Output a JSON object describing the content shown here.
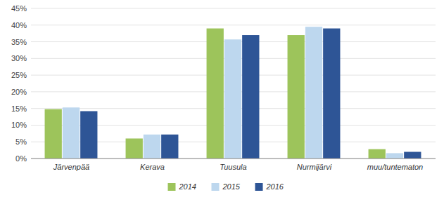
{
  "chart_data": {
    "type": "bar",
    "categories": [
      "Järvenpää",
      "Kerava",
      "Tuusula",
      "Nurmijärvi",
      "muu/tuntematon"
    ],
    "series": [
      {
        "name": "2014",
        "color": "#9DC45B",
        "values": [
          0.148,
          0.06,
          0.39,
          0.37,
          0.028
        ]
      },
      {
        "name": "2015",
        "color": "#BDD7EE",
        "values": [
          0.153,
          0.072,
          0.357,
          0.395,
          0.016
        ]
      },
      {
        "name": "2016",
        "color": "#2E5596",
        "values": [
          0.142,
          0.072,
          0.37,
          0.39,
          0.02
        ]
      }
    ],
    "ylim": [
      0,
      0.45
    ],
    "yticks": [
      {
        "value": 0.0,
        "label": "0%"
      },
      {
        "value": 0.05,
        "label": "5%"
      },
      {
        "value": 0.1,
        "label": "10%"
      },
      {
        "value": 0.15,
        "label": "15%"
      },
      {
        "value": 0.2,
        "label": "20%"
      },
      {
        "value": 0.25,
        "label": "25%"
      },
      {
        "value": 0.3,
        "label": "30%"
      },
      {
        "value": 0.35,
        "label": "35%"
      },
      {
        "value": 0.4,
        "label": "40%"
      },
      {
        "value": 0.45,
        "label": "45%"
      }
    ],
    "grid": true,
    "legend": "bottom"
  }
}
